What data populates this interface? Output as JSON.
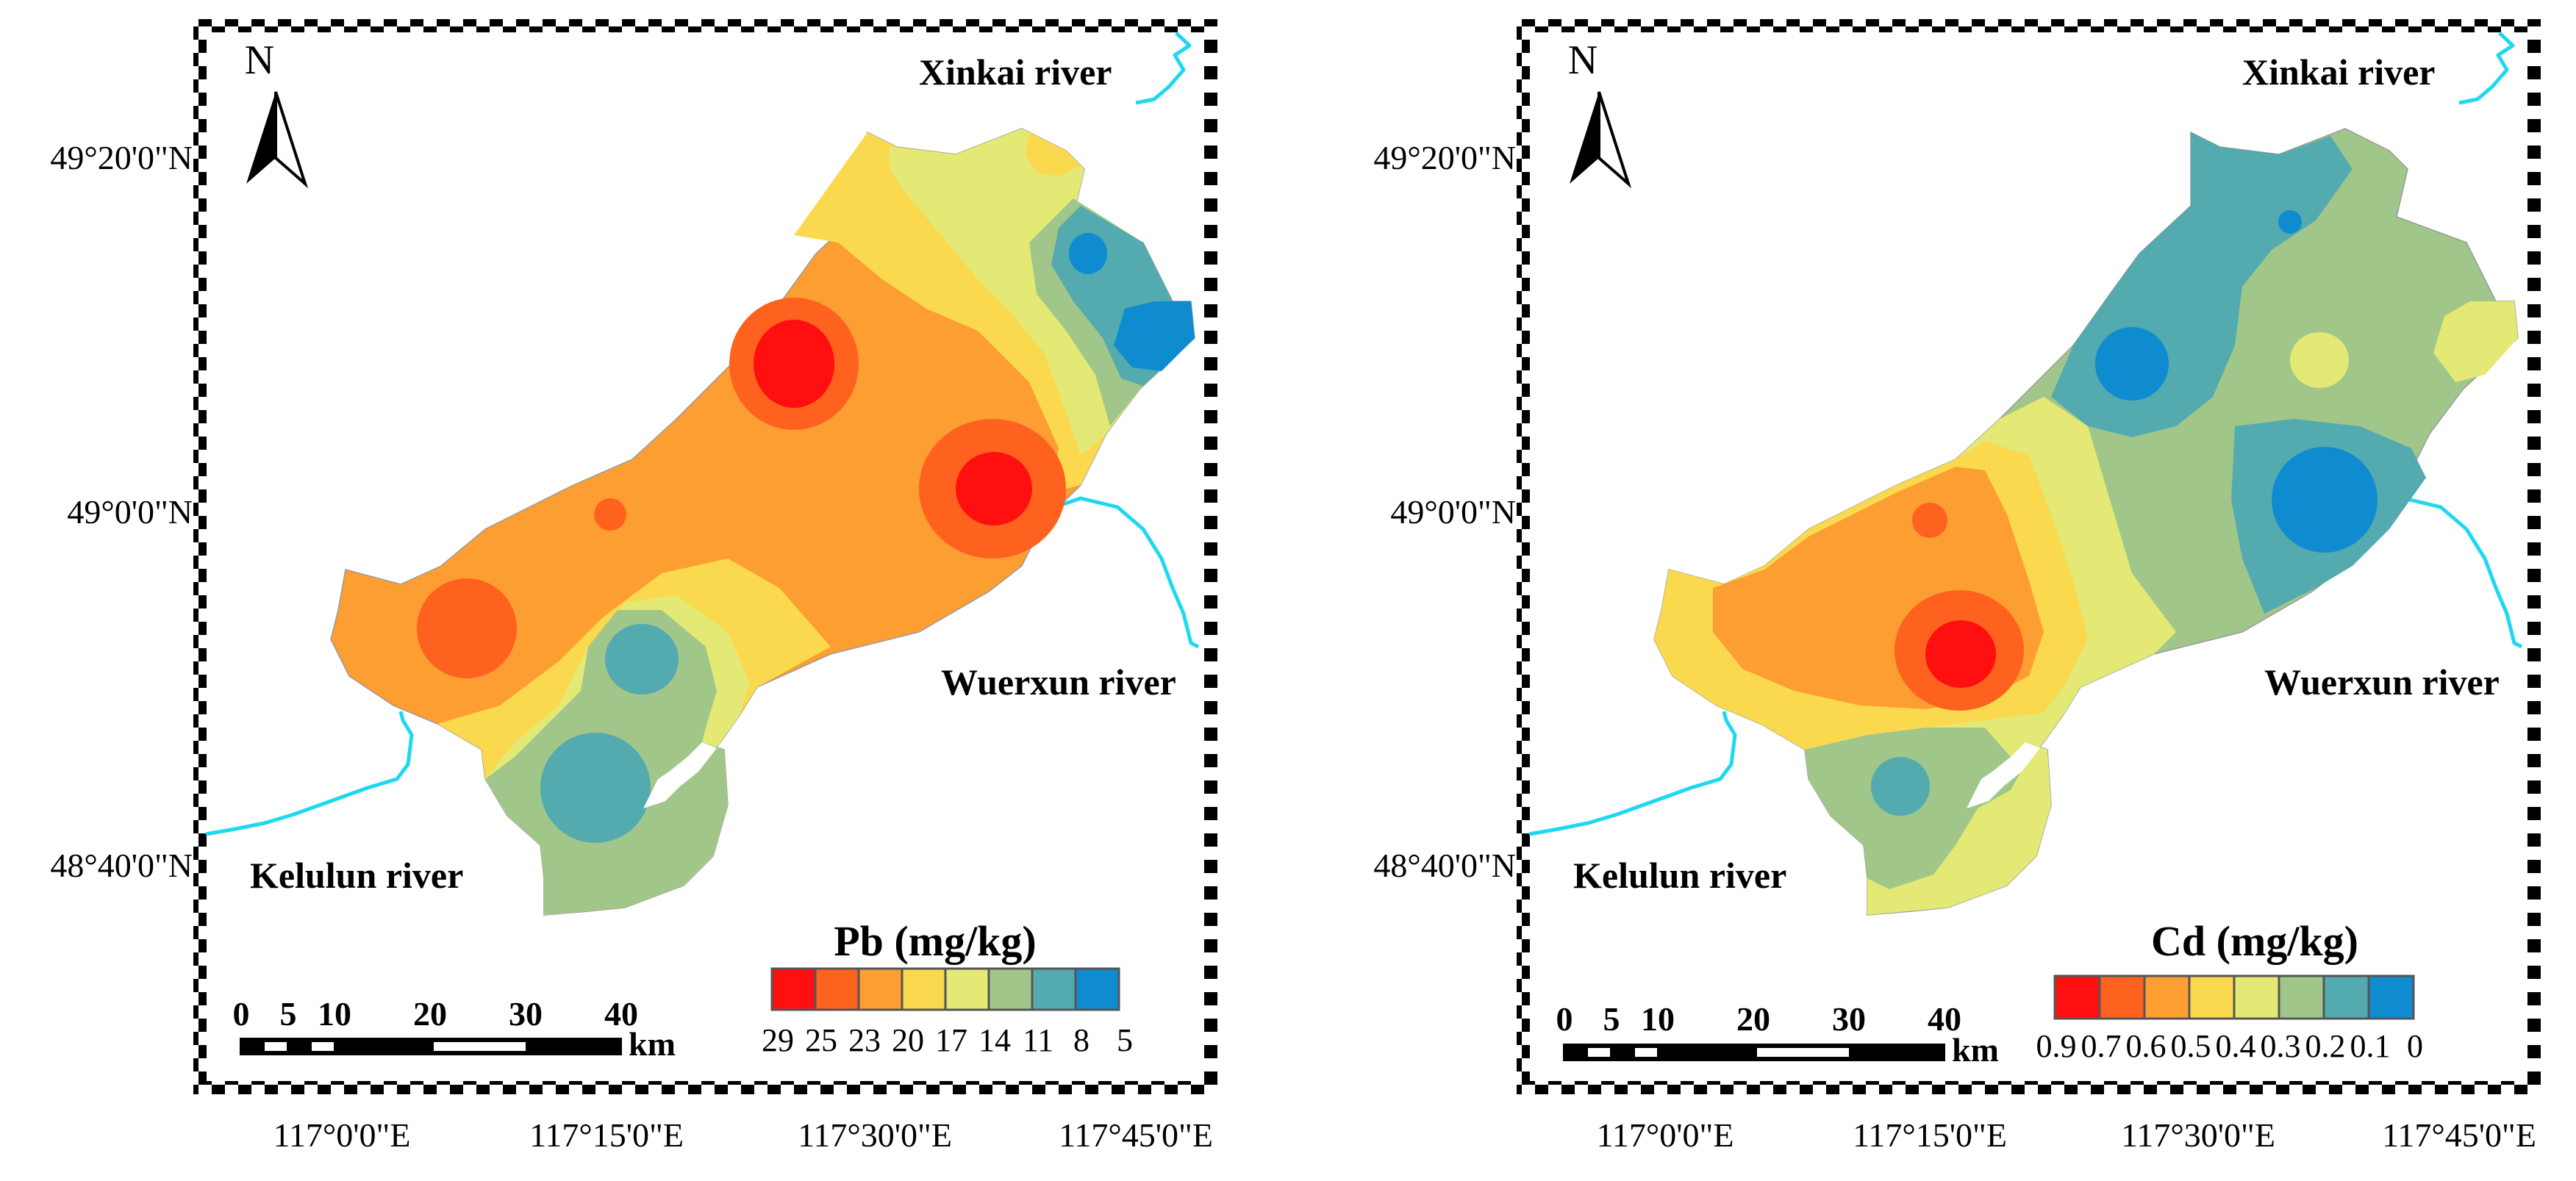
{
  "figure": {
    "panels": [
      {
        "id": "pb",
        "element": "Pb",
        "legend_title": "Pb (mg/kg)",
        "legend_ticks": [
          "29",
          "25",
          "23",
          "20",
          "17",
          "14",
          "11",
          "8",
          "5"
        ],
        "lat_labels": [
          "49°20'0\"N",
          "49°0'0\"N",
          "48°40'0\"N"
        ],
        "lon_labels": [
          "117°0'0\"E",
          "117°15'0\"E",
          "117°30'0\"E",
          "117°45'0\"E"
        ],
        "river_labels": {
          "xinkai": "Xinkai river",
          "wuerxun": "Wuerxun river",
          "kelulun": "Kelulun river"
        },
        "north": "N",
        "scale": {
          "ticks": [
            "0",
            "5",
            "10",
            "20",
            "30",
            "40"
          ],
          "unit": "km"
        }
      },
      {
        "id": "cd",
        "element": "Cd",
        "legend_title": "Cd (mg/kg)",
        "legend_ticks": [
          "0.9",
          "0.7",
          "0.6",
          "0.5",
          "0.4",
          "0.3",
          "0.2",
          "0.1",
          "0"
        ],
        "lat_labels": [
          "49°20'0\"N",
          "49°0'0\"N",
          "48°40'0\"N"
        ],
        "lon_labels": [
          "117°0'0\"E",
          "117°15'0\"E",
          "117°30'0\"E",
          "117°45'0\"E"
        ],
        "river_labels": {
          "xinkai": "Xinkai river",
          "wuerxun": "Wuerxun river",
          "kelulun": "Kelulun river"
        },
        "north": "N",
        "scale": {
          "ticks": [
            "0",
            "5",
            "10",
            "20",
            "30",
            "40"
          ],
          "unit": "km"
        }
      }
    ],
    "colors": {
      "class_ramp": [
        "#ff0f0f",
        "#ff621e",
        "#fd9e33",
        "#fbd94f",
        "#e3e974",
        "#a1c68a",
        "#53aaaf",
        "#0f8bd0"
      ],
      "river": "#1ed8f2"
    }
  }
}
